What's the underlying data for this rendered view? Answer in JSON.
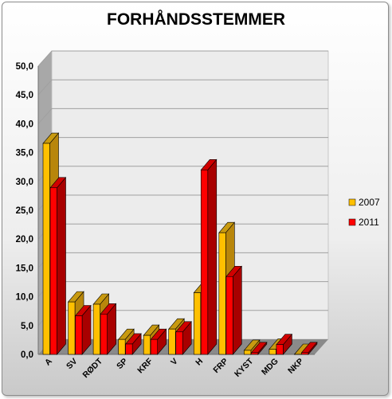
{
  "chart_data": {
    "type": "bar",
    "title": "FORHÅNDSSTEMMER",
    "categories": [
      "A",
      "SV",
      "RØDT",
      "SP",
      "KRF",
      "V",
      "H",
      "FRP",
      "KYST",
      "MDG",
      "NKP"
    ],
    "series": [
      {
        "name": "2007",
        "values": [
          36.6,
          9.1,
          8.7,
          2.6,
          3.3,
          4.4,
          10.7,
          21.1,
          0.7,
          0.9,
          0.0
        ]
      },
      {
        "name": "2011",
        "values": [
          28.9,
          6.7,
          7.0,
          1.8,
          2.6,
          3.9,
          32.0,
          13.5,
          0.3,
          1.7,
          0.3
        ]
      }
    ],
    "ylim": [
      0,
      50
    ],
    "yticks": [
      "0,0",
      "5,0",
      "10,0",
      "15,0",
      "20,0",
      "25,0",
      "30,0",
      "35,0",
      "40,0",
      "45,0",
      "50,0"
    ],
    "grid": true,
    "legend_position": "right",
    "colors": {
      "2007": {
        "front": "#ffc000",
        "side": "#b8860b",
        "top": "#c89a10"
      },
      "2011": {
        "front": "#ff0000",
        "side": "#a80000",
        "top": "#d00000"
      },
      "wall": "#ececec",
      "floor": "#8a8a8a",
      "grid": "#a0a0a0"
    }
  }
}
